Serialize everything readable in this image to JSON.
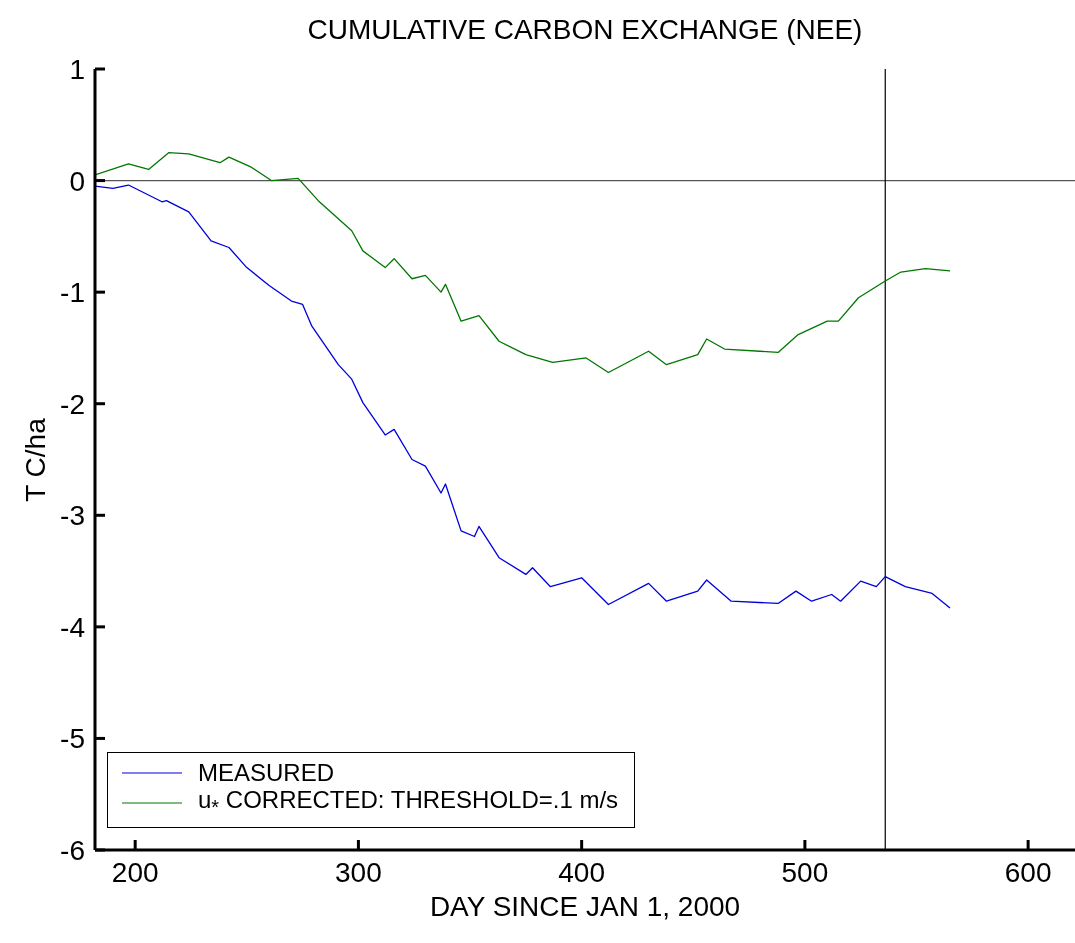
{
  "chart_data": {
    "type": "line",
    "title": "CUMULATIVE CARBON EXCHANGE (NEE)",
    "xlabel": "DAY SINCE JAN 1, 2000",
    "ylabel": "T C/ha",
    "xlim": [
      182,
      621
    ],
    "xticks": [
      200,
      300,
      400,
      500,
      600
    ],
    "ylim": [
      -6,
      1
    ],
    "yticks": [
      -6,
      -5,
      -4,
      -3,
      -2,
      -1,
      0,
      1
    ],
    "grid": false,
    "legend": "bottom left",
    "marker": "none",
    "line_style": "solid",
    "ref_lines": [
      {
        "axis": "y",
        "value": 0,
        "color": "#555555"
      },
      {
        "axis": "x",
        "value": 536,
        "color": "#000000"
      }
    ],
    "series": [
      {
        "name": "MEASURED",
        "color": "#0000dd",
        "x": [
          182,
          190,
          197,
          212,
          214,
          224,
          234,
          242,
          250,
          260,
          270,
          275,
          279,
          291,
          297,
          302,
          312,
          316,
          324,
          330,
          337,
          339,
          346,
          352,
          354,
          363,
          375,
          378,
          386,
          400,
          412,
          430,
          438,
          452,
          456,
          467,
          488,
          496,
          503,
          512,
          516,
          525,
          532,
          536,
          545,
          557,
          565
        ],
        "values": [
          -0.05,
          -0.07,
          -0.04,
          -0.19,
          -0.18,
          -0.28,
          -0.54,
          -0.6,
          -0.78,
          -0.94,
          -1.08,
          -1.11,
          -1.3,
          -1.65,
          -1.78,
          -1.99,
          -2.28,
          -2.23,
          -2.5,
          -2.56,
          -2.8,
          -2.72,
          -3.14,
          -3.19,
          -3.1,
          -3.38,
          -3.53,
          -3.47,
          -3.64,
          -3.56,
          -3.8,
          -3.61,
          -3.77,
          -3.68,
          -3.58,
          -3.77,
          -3.79,
          -3.68,
          -3.77,
          -3.71,
          -3.77,
          -3.59,
          -3.64,
          -3.55,
          -3.64,
          -3.7,
          -3.83
        ]
      },
      {
        "name": "u$_{*}$ CORRECTED: THRESHOLD=.1 m/s",
        "color": "#007700",
        "x": [
          182,
          197,
          206,
          215,
          224,
          238,
          242,
          252,
          261,
          273,
          282,
          297,
          302,
          312,
          316,
          324,
          330,
          337,
          339,
          346,
          354,
          363,
          375,
          387,
          402,
          412,
          430,
          438,
          452,
          456,
          464,
          488,
          497,
          510,
          515,
          524,
          536,
          543,
          554,
          565
        ],
        "values": [
          0.05,
          0.15,
          0.1,
          0.25,
          0.24,
          0.16,
          0.21,
          0.12,
          0.0,
          0.02,
          -0.18,
          -0.45,
          -0.63,
          -0.78,
          -0.7,
          -0.88,
          -0.85,
          -1.0,
          -0.93,
          -1.26,
          -1.21,
          -1.44,
          -1.56,
          -1.63,
          -1.59,
          -1.72,
          -1.53,
          -1.65,
          -1.56,
          -1.42,
          -1.51,
          -1.54,
          -1.38,
          -1.26,
          -1.26,
          -1.05,
          -0.9,
          -0.82,
          -0.79,
          -0.81
        ]
      }
    ]
  }
}
